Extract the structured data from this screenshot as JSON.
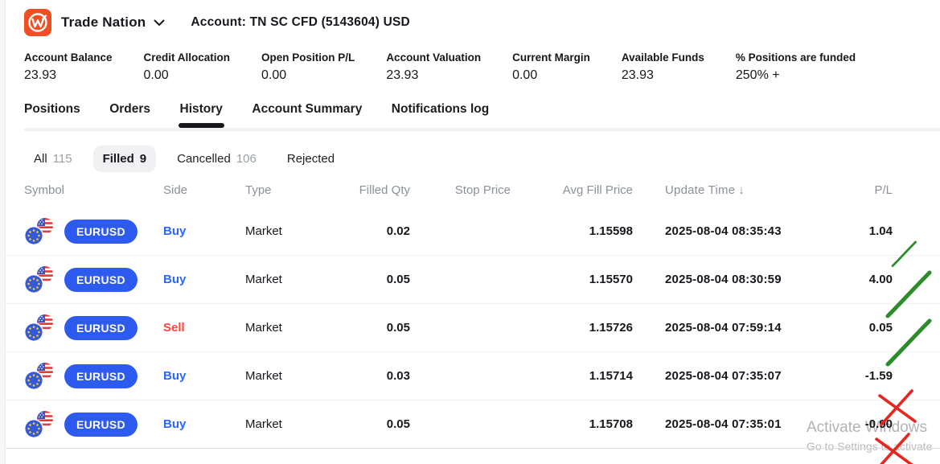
{
  "header": {
    "brand": "Trade Nation",
    "account": "Account: TN SC CFD (5143604) USD"
  },
  "stats": [
    {
      "label": "Account Balance",
      "value": "23.93"
    },
    {
      "label": "Credit Allocation",
      "value": "0.00"
    },
    {
      "label": "Open Position P/L",
      "value": "0.00"
    },
    {
      "label": "Account Valuation",
      "value": "23.93"
    },
    {
      "label": "Current Margin",
      "value": "0.00"
    },
    {
      "label": "Available Funds",
      "value": "23.93"
    },
    {
      "label": "% Positions are funded",
      "value": "250% +"
    }
  ],
  "tabs": [
    {
      "label": "Positions",
      "active": false
    },
    {
      "label": "Orders",
      "active": false
    },
    {
      "label": "History",
      "active": true
    },
    {
      "label": "Account Summary",
      "active": false
    },
    {
      "label": "Notifications log",
      "active": false
    }
  ],
  "filters": [
    {
      "label": "All",
      "count": "115",
      "active": false
    },
    {
      "label": "Filled",
      "count": "9",
      "active": true
    },
    {
      "label": "Cancelled",
      "count": "106",
      "active": false
    },
    {
      "label": "Rejected",
      "count": "",
      "active": false
    }
  ],
  "table": {
    "columns": [
      {
        "label": "Symbol",
        "align": "left"
      },
      {
        "label": "Side",
        "align": "left"
      },
      {
        "label": "Type",
        "align": "left"
      },
      {
        "label": "Filled Qty",
        "align": "right"
      },
      {
        "label": "Stop Price",
        "align": "right"
      },
      {
        "label": "Avg Fill Price",
        "align": "right"
      },
      {
        "label": "Update Time",
        "align": "left",
        "sort_indicator": "↓"
      },
      {
        "label": "P/L",
        "align": "right"
      }
    ],
    "rows": [
      {
        "symbol": "EURUSD",
        "side": "Buy",
        "type": "Market",
        "filled_qty": "0.02",
        "stop_price": "",
        "avg_fill_price": "1.15598",
        "update_time": "2025-08-04 08:35:43",
        "pl": "1.04",
        "annotation": "check"
      },
      {
        "symbol": "EURUSD",
        "side": "Buy",
        "type": "Market",
        "filled_qty": "0.05",
        "stop_price": "",
        "avg_fill_price": "1.15570",
        "update_time": "2025-08-04 08:30:59",
        "pl": "4.00",
        "annotation": "check"
      },
      {
        "symbol": "EURUSD",
        "side": "Sell",
        "type": "Market",
        "filled_qty": "0.05",
        "stop_price": "",
        "avg_fill_price": "1.15726",
        "update_time": "2025-08-04 07:59:14",
        "pl": "0.05",
        "annotation": "check"
      },
      {
        "symbol": "EURUSD",
        "side": "Buy",
        "type": "Market",
        "filled_qty": "0.03",
        "stop_price": "",
        "avg_fill_price": "1.15714",
        "update_time": "2025-08-04 07:35:07",
        "pl": "-1.59",
        "annotation": "cross"
      },
      {
        "symbol": "EURUSD",
        "side": "Buy",
        "type": "Market",
        "filled_qty": "0.05",
        "stop_price": "",
        "avg_fill_price": "1.15708",
        "update_time": "2025-08-04 07:35:01",
        "pl": "-0.90",
        "annotation": "cross"
      }
    ]
  },
  "watermark": {
    "line1": "Activate Windows",
    "line2": "Go to Settings to activate"
  },
  "colors": {
    "brand_orange": "#f04e23",
    "badge_blue": "#2d5bf0",
    "buy_blue": "#2966ff",
    "sell_red": "#fd4438",
    "check_green": "#2e8b2c",
    "cross_red": "#e8251f"
  }
}
